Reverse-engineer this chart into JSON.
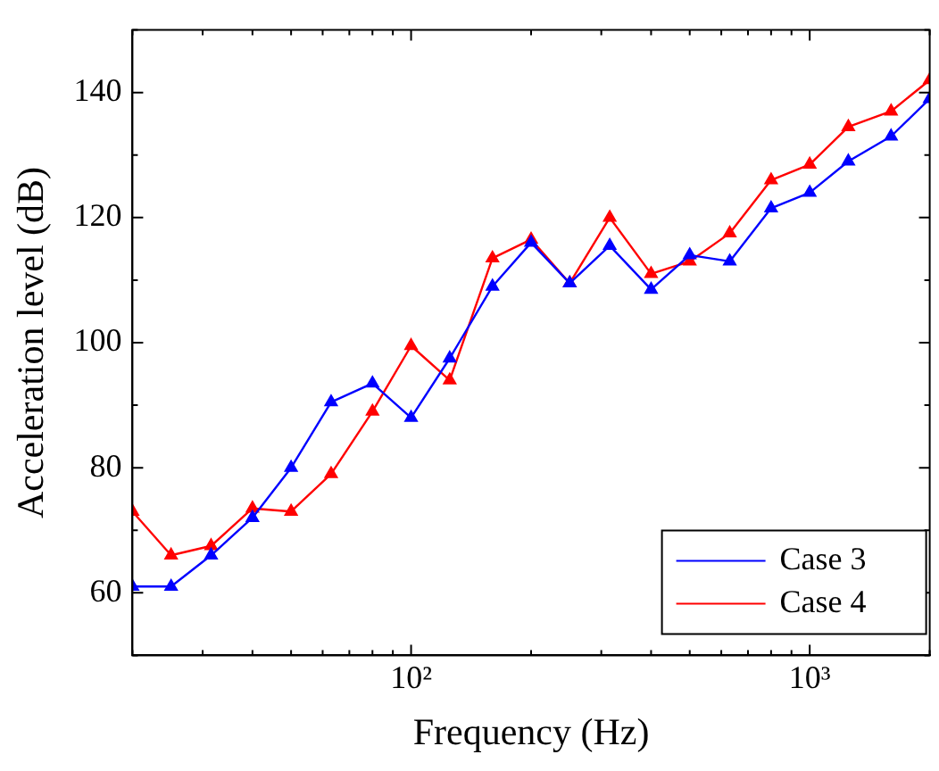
{
  "chart_data": {
    "type": "line",
    "xlabel": "Frequency (Hz)",
    "ylabel": "Acceleration level (dB)",
    "x": [
      20,
      25,
      31.5,
      40,
      50,
      63,
      80,
      100,
      125,
      160,
      200,
      250,
      315,
      400,
      500,
      630,
      800,
      1000,
      1250,
      1600,
      2000
    ],
    "series": [
      {
        "name": "Case 3",
        "color": "#0000ff",
        "values": [
          61,
          61,
          66,
          72,
          80,
          90.5,
          93.5,
          88,
          97.5,
          109,
          116,
          109.5,
          115.5,
          108.5,
          114,
          113,
          121.5,
          124,
          129,
          133,
          139
        ]
      },
      {
        "name": "Case 4",
        "color": "#ff0000",
        "values": [
          73,
          66,
          67.5,
          73.5,
          73,
          79,
          89,
          99.5,
          94,
          113.5,
          116.5,
          109.5,
          120,
          111,
          113,
          117.5,
          126,
          128.5,
          134.5,
          137,
          142
        ]
      }
    ],
    "log": "x",
    "xlim": [
      20,
      2000
    ],
    "xticks": [
      {
        "value": 100,
        "label": "10²"
      },
      {
        "value": 1000,
        "label": "10³"
      }
    ],
    "ylim": [
      50,
      150
    ],
    "yticks": [
      60,
      80,
      100,
      120,
      140
    ],
    "grid": false,
    "legend": "bottom right",
    "marker": "triangle",
    "line_style": "solid"
  }
}
